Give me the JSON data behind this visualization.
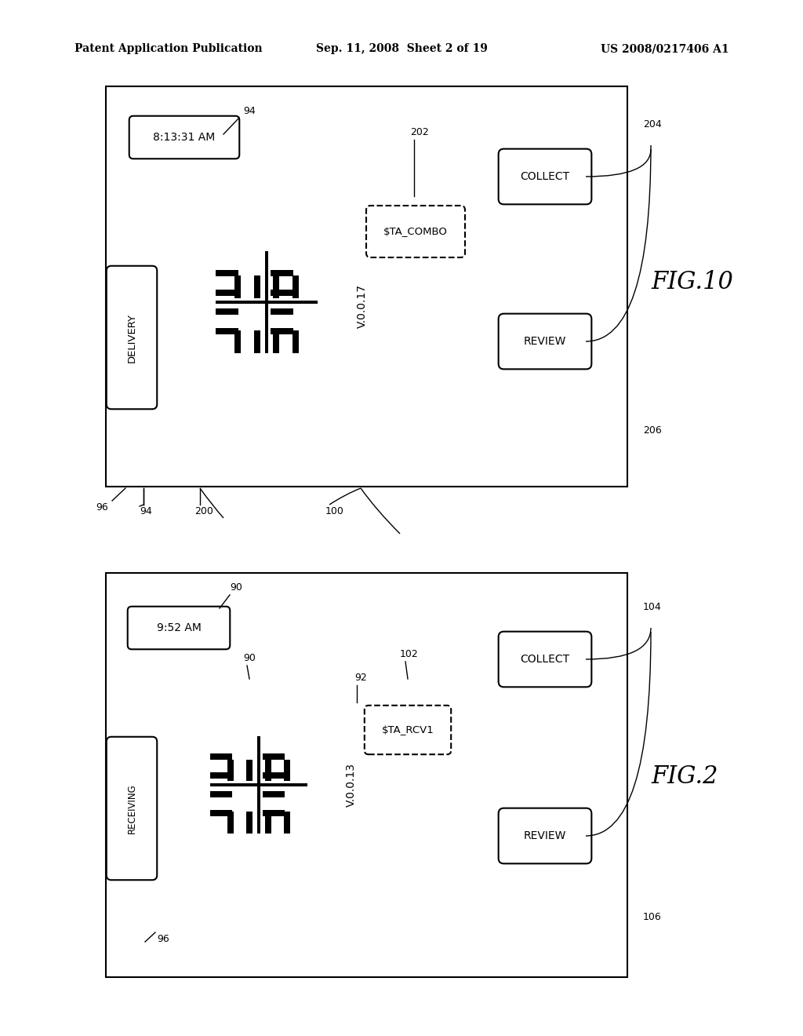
{
  "bg_color": "#ffffff",
  "header_left": "Patent Application Publication",
  "header_mid": "Sep. 11, 2008  Sheet 2 of 19",
  "header_right": "US 2008/0217406 A1"
}
